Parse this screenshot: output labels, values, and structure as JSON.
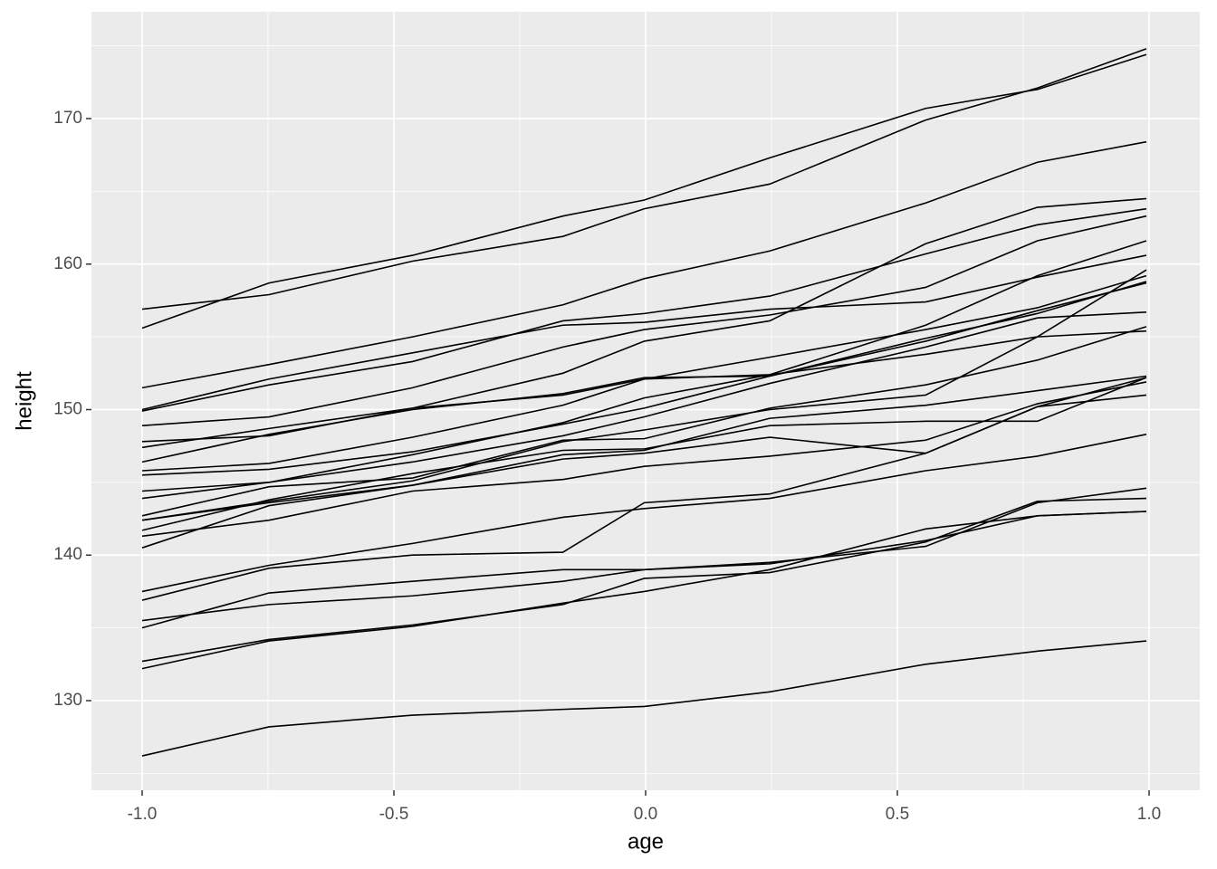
{
  "chart_data": {
    "type": "line",
    "x": [
      -1.0,
      -0.7479,
      -0.463,
      -0.1643,
      -0.0027,
      0.2466,
      0.5562,
      0.7781,
      0.9945
    ],
    "xlabel": "age",
    "ylabel": "height",
    "xlim": [
      -1.1007,
      1.1007
    ],
    "ylim": [
      123.84,
      177.34
    ],
    "xticks": [
      {
        "value": -1,
        "label": "-1.0"
      },
      -0.5,
      {
        "value": 0,
        "label": "0.0"
      },
      0.5,
      {
        "value": 1,
        "label": "1.0"
      }
    ],
    "yticks": [
      130,
      140,
      150,
      160,
      170
    ],
    "grid": true,
    "color": "#000000",
    "series": [
      {
        "values": [
          156.9,
          157.9,
          160.2,
          161.9,
          163.8,
          165.5,
          169.9,
          172.1,
          174.8
        ]
      },
      {
        "values": [
          155.6,
          158.7,
          160.6,
          163.3,
          164.4,
          167.3,
          170.7,
          172.0,
          174.4
        ]
      },
      {
        "values": [
          151.5,
          153.1,
          155.0,
          157.2,
          159.0,
          160.9,
          164.2,
          167.0,
          168.4
        ]
      },
      {
        "values": [
          150.0,
          152.1,
          153.9,
          155.8,
          156.0,
          156.9,
          157.4,
          159.1,
          160.6
        ]
      },
      {
        "values": [
          149.9,
          151.7,
          153.3,
          156.1,
          156.6,
          157.8,
          160.7,
          162.7,
          163.8
        ]
      },
      {
        "values": [
          148.9,
          149.5,
          151.5,
          154.3,
          155.5,
          156.5,
          158.4,
          161.6,
          163.3
        ]
      },
      {
        "values": [
          147.8,
          148.2,
          150.1,
          152.5,
          154.7,
          156.1,
          161.4,
          163.9,
          164.5
        ]
      },
      {
        "values": [
          147.4,
          148.7,
          150.1,
          151.0,
          152.1,
          152.4,
          155.8,
          159.2,
          161.6
        ]
      },
      {
        "values": [
          146.4,
          148.3,
          150.0,
          151.1,
          152.2,
          152.3,
          154.7,
          156.8,
          158.7
        ]
      },
      {
        "values": [
          145.8,
          146.3,
          148.1,
          150.3,
          152.1,
          153.6,
          155.5,
          157.0,
          159.2
        ]
      },
      {
        "values": [
          145.5,
          145.9,
          147.1,
          149.0,
          150.1,
          152.3,
          154.9,
          156.6,
          158.8
        ]
      },
      {
        "values": [
          144.4,
          145.0,
          146.4,
          148.2,
          149.5,
          151.8,
          154.3,
          156.3,
          156.7
        ]
      },
      {
        "values": [
          143.9,
          145.0,
          146.9,
          149.1,
          150.8,
          152.4,
          153.8,
          155.0,
          155.4
        ]
      },
      {
        "values": [
          142.7,
          144.7,
          145.3,
          147.9,
          148.0,
          150.1,
          151.7,
          153.4,
          155.7
        ]
      },
      {
        "values": [
          142.4,
          143.7,
          145.1,
          147.8,
          148.6,
          150.0,
          151.0,
          155.0,
          159.6
        ]
      },
      {
        "values": [
          142.4,
          143.6,
          144.8,
          146.9,
          147.2,
          149.4,
          150.3,
          151.3,
          152.3
        ]
      },
      {
        "values": [
          141.7,
          143.8,
          145.6,
          147.2,
          147.3,
          148.9,
          149.2,
          149.2,
          152.2
        ]
      },
      {
        "values": [
          141.3,
          142.4,
          144.4,
          145.2,
          146.1,
          146.8,
          147.9,
          150.4,
          151.9
        ]
      },
      {
        "values": [
          140.5,
          143.4,
          144.8,
          146.6,
          147.0,
          148.1,
          147.0,
          150.2,
          151.0
        ]
      },
      {
        "values": [
          137.5,
          139.3,
          140.8,
          142.6,
          143.2,
          143.9,
          145.8,
          146.8,
          148.3
        ]
      },
      {
        "values": [
          136.9,
          139.1,
          140.0,
          140.2,
          143.6,
          144.2,
          147.0,
          150.2,
          152.2
        ]
      },
      {
        "values": [
          135.5,
          136.6,
          137.2,
          138.2,
          139.0,
          139.4,
          141.0,
          142.7,
          143.0
        ]
      },
      {
        "values": [
          135.0,
          137.4,
          138.2,
          139.0,
          139.0,
          139.5,
          140.6,
          143.6,
          144.6
        ]
      },
      {
        "values": [
          132.7,
          134.2,
          135.2,
          136.6,
          138.4,
          138.8,
          140.9,
          143.7,
          143.9
        ]
      },
      {
        "values": [
          132.2,
          134.1,
          135.1,
          136.7,
          137.5,
          139.0,
          141.8,
          142.7,
          143.0
        ]
      },
      {
        "values": [
          126.2,
          128.2,
          129.0,
          129.4,
          129.6,
          130.6,
          132.5,
          133.4,
          134.1
        ]
      }
    ]
  }
}
